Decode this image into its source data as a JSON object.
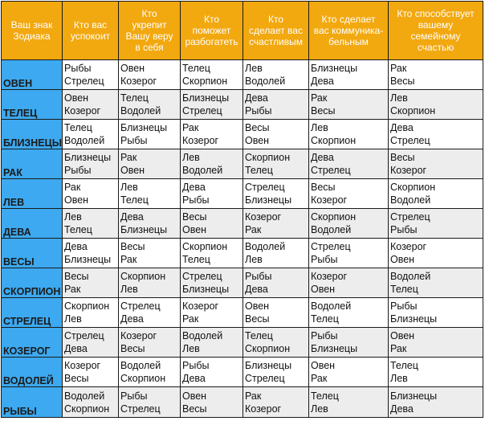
{
  "table": {
    "colors": {
      "header": "#f2a80f",
      "sign_column": "#3ca9f0",
      "row_alt": "#ededed"
    },
    "headers": [
      "Ваш знак\nЗодиака",
      "Кто вас\nуспокоит",
      "Кто\nукрепит\nВашу веру\nв себя",
      "Кто\nпоможет\nразбогатеть",
      "Кто\nсделает вас\nсчастливым",
      "Кто сделает\nвас коммуника-\nбельным",
      "Кто способствует\nвашему\nсемейному\nсчастью"
    ],
    "rows": [
      {
        "sign": "ОВЕН",
        "cells": [
          [
            "Рыбы",
            "Стрелец"
          ],
          [
            "Овен",
            "Козерог"
          ],
          [
            "Телец",
            "Скорпион"
          ],
          [
            "Лев",
            "Водолей"
          ],
          [
            "Близнецы",
            "Дева"
          ],
          [
            "Рак",
            "Весы"
          ]
        ]
      },
      {
        "sign": "ТЕЛЕЦ",
        "cells": [
          [
            "Овен",
            "Козерог"
          ],
          [
            "Телец",
            "Водолей"
          ],
          [
            "Близнецы",
            "Стрелец"
          ],
          [
            "Дева",
            "Рыбы"
          ],
          [
            "Рак",
            "Весы"
          ],
          [
            "Лев",
            "Скорпион"
          ]
        ]
      },
      {
        "sign": "БЛИЗНЕЦЫ",
        "cells": [
          [
            "Телец",
            "Водолей"
          ],
          [
            "Близнецы",
            "Рыбы"
          ],
          [
            "Рак",
            "Козерог"
          ],
          [
            "Весы",
            "Овен"
          ],
          [
            "Лев",
            "Скорпион"
          ],
          [
            "Дева",
            "Стрелец"
          ]
        ]
      },
      {
        "sign": "РАК",
        "cells": [
          [
            "Близнецы",
            "Рыбы"
          ],
          [
            "Рак",
            "Овен"
          ],
          [
            "Лев",
            "Водолей"
          ],
          [
            "Скорпион",
            "Телец"
          ],
          [
            "Дева",
            "Стрелец"
          ],
          [
            "Весы",
            "Козерог"
          ]
        ]
      },
      {
        "sign": "ЛЕВ",
        "cells": [
          [
            "Рак",
            "Овен"
          ],
          [
            "Лев",
            "Телец"
          ],
          [
            "Дева",
            "Рыбы"
          ],
          [
            "Стрелец",
            "Близнецы"
          ],
          [
            "Весы",
            "Козерог"
          ],
          [
            "Скорпион",
            "Водолей"
          ]
        ]
      },
      {
        "sign": "ДЕВА",
        "cells": [
          [
            "Лев",
            "Телец"
          ],
          [
            "Дева",
            "Близнецы"
          ],
          [
            "Весы",
            "Овен"
          ],
          [
            "Козерог",
            "Рак"
          ],
          [
            "Скорпион",
            "Водолей"
          ],
          [
            "Стрелец",
            "Рыбы"
          ]
        ]
      },
      {
        "sign": "ВЕСЫ",
        "cells": [
          [
            "Дева",
            "Близнецы"
          ],
          [
            "Весы",
            "Рак"
          ],
          [
            "Скорпион",
            "Телец"
          ],
          [
            "Водолей",
            "Лев"
          ],
          [
            "Стрелец",
            "Рыбы"
          ],
          [
            "Козерог",
            "Овен"
          ]
        ]
      },
      {
        "sign": "СКОРПИОН",
        "cells": [
          [
            "Весы",
            "Рак"
          ],
          [
            "Скорпион",
            "Лев"
          ],
          [
            "Стрелец",
            "Близнецы"
          ],
          [
            "Рыбы",
            "Дева"
          ],
          [
            "Козерог",
            "Овен"
          ],
          [
            "Водолей",
            "Телец"
          ]
        ]
      },
      {
        "sign": "СТРЕЛЕЦ",
        "cells": [
          [
            "Скорпион",
            "Лев"
          ],
          [
            "Стрелец",
            "Дева"
          ],
          [
            "Козерог",
            "Рак"
          ],
          [
            "Овен",
            "Весы"
          ],
          [
            "Водолей",
            "Телец"
          ],
          [
            "Рыбы",
            "Близнецы"
          ]
        ]
      },
      {
        "sign": "КОЗЕРОГ",
        "cells": [
          [
            "Стрелец",
            "Дева"
          ],
          [
            "Козерог",
            "Весы"
          ],
          [
            "Водолей",
            "Лев"
          ],
          [
            "Телец",
            "Скорпион"
          ],
          [
            "Рыбы",
            "Близнецы"
          ],
          [
            "Овен",
            "Рак"
          ]
        ]
      },
      {
        "sign": "ВОДОЛЕЙ",
        "cells": [
          [
            "Козерог",
            "Весы"
          ],
          [
            "Водолей",
            "Скорпион"
          ],
          [
            "Рыбы",
            "Дева"
          ],
          [
            "Близнецы",
            "Стрелец"
          ],
          [
            "Овен",
            "Рак"
          ],
          [
            "Телец",
            "Лев"
          ]
        ]
      },
      {
        "sign": "РЫБЫ",
        "cells": [
          [
            "Водолей",
            "Скорпион"
          ],
          [
            "Рыбы",
            "Стрелец"
          ],
          [
            "Овен",
            "Весы"
          ],
          [
            "Рак",
            "Козерог"
          ],
          [
            "Телец",
            "Лев"
          ],
          [
            "Близнецы",
            "Дева"
          ]
        ]
      }
    ]
  }
}
